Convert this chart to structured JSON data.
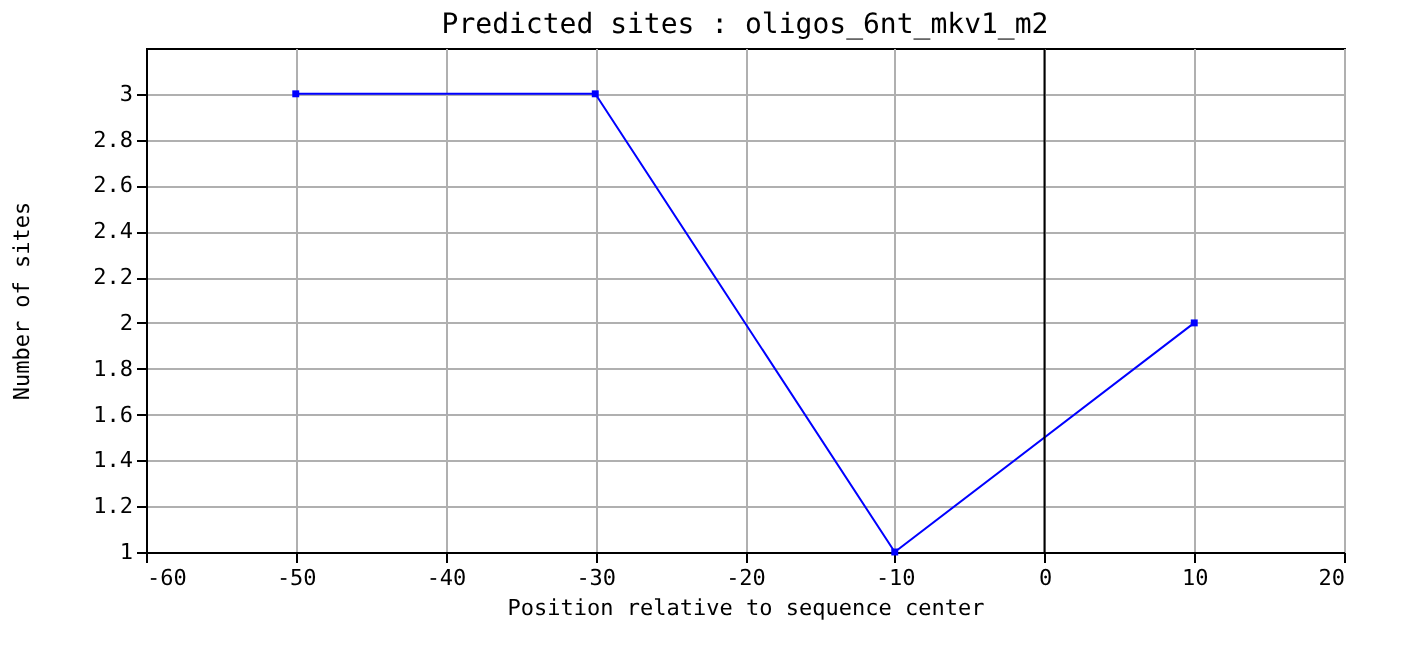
{
  "chart_data": {
    "type": "line",
    "title": "Predicted sites : oligos_6nt_mkv1_m2",
    "xlabel": "Position relative to sequence center",
    "ylabel": "Number of sites",
    "x": [
      -50,
      -30,
      -10,
      10
    ],
    "series": [
      {
        "color": "#0000ff",
        "values": [
          3,
          3,
          1,
          2
        ]
      }
    ],
    "xlim": [
      -60,
      20
    ],
    "xticks": [
      -60,
      -50,
      -40,
      -30,
      -20,
      -10,
      0,
      10,
      20
    ],
    "ylim": [
      1,
      3.2
    ],
    "yticks": [
      1,
      1.2,
      1.4,
      1.6,
      1.8,
      2,
      2.2,
      2.4,
      2.6,
      2.8,
      3
    ],
    "ref_lines": [
      {
        "axis": "x",
        "value": 0,
        "color": "#000000"
      }
    ],
    "grid": true,
    "marker": "square",
    "line_style": "solid"
  }
}
